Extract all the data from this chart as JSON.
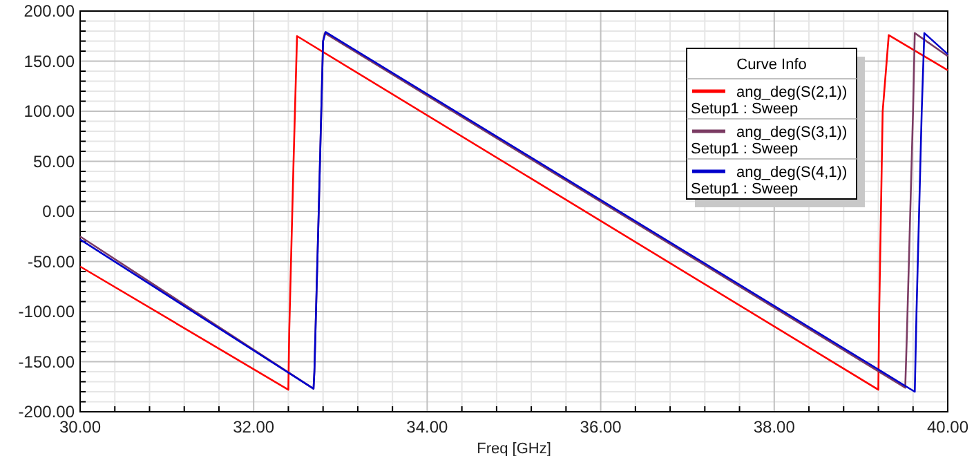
{
  "chart_data": {
    "type": "line",
    "xlabel": "Freq [GHz]",
    "legend_title": "Curve Info",
    "legend": "top right",
    "grid": true,
    "marker": "none",
    "line_style": "solid",
    "xlim": [
      30,
      40
    ],
    "xticks": [
      {
        "value": 30,
        "label": "30.00"
      },
      {
        "value": 32,
        "label": "32.00"
      },
      {
        "value": 34,
        "label": "34.00"
      },
      {
        "value": 36,
        "label": "36.00"
      },
      {
        "value": 38,
        "label": "38.00"
      },
      {
        "value": 40,
        "label": "40.00"
      }
    ],
    "ylim": [
      -200,
      200
    ],
    "yticks": [
      {
        "value": -200,
        "label": "-200.00"
      },
      {
        "value": -150,
        "label": "-150.00"
      },
      {
        "value": -100,
        "label": "-100.00"
      },
      {
        "value": -50,
        "label": "-50.00"
      },
      {
        "value": 0,
        "label": "0.00"
      },
      {
        "value": 50,
        "label": "50.00"
      },
      {
        "value": 100,
        "label": "100.00"
      },
      {
        "value": 150,
        "label": "150.00"
      },
      {
        "value": 200,
        "label": "200.00"
      }
    ],
    "series": [
      {
        "name": "ang_deg(S(2,1))\nSetup1 : Sweep",
        "color": "#ff0000",
        "x": [
          30,
          32.4,
          32.41,
          32.46,
          32.5,
          39.2,
          39.21,
          39.25,
          39.32,
          40
        ],
        "values": [
          -55,
          -178,
          -120,
          50,
          175,
          -178,
          -100,
          100,
          176,
          141
        ]
      },
      {
        "name": "ang_deg(S(3,1))\nSetup1 : Sweep",
        "color": "#7b3b63",
        "x": [
          30,
          32.69,
          32.7,
          32.75,
          32.8,
          32.82,
          39.51,
          39.53,
          39.6,
          39.62,
          40
        ],
        "values": [
          -25,
          -177,
          -160,
          0,
          170,
          178,
          -176,
          -120,
          100,
          178,
          155
        ]
      },
      {
        "name": "ang_deg(S(4,1))\nSetup1 : Sweep",
        "color": "#0000cc",
        "x": [
          30,
          32.69,
          32.7,
          32.75,
          32.8,
          32.83,
          39.62,
          39.64,
          39.7,
          39.73,
          40
        ],
        "values": [
          -28,
          -177,
          -160,
          0,
          170,
          179,
          -180,
          -100,
          100,
          178,
          157
        ]
      }
    ]
  }
}
